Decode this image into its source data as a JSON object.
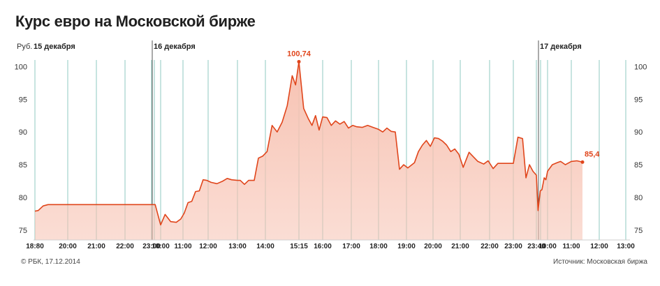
{
  "title": "Курс евро на Московской бирже",
  "credit": "© РБК, 17.12.2014",
  "source": "Источник: Московская биржа",
  "colors": {
    "line": "#e0451b",
    "fill": "#f7c2b2",
    "grid": "#8fc9c0",
    "axis": "#cfcfcf",
    "label": "#e0451b"
  },
  "chart_data": {
    "type": "area",
    "unit_label": "Руб.",
    "ylim": [
      73.5,
      101
    ],
    "y_ticks": [
      75,
      80,
      85,
      90,
      95,
      100
    ],
    "x_ticks": [
      "18:80",
      "20:00",
      "21:00",
      "22:00",
      "23:00",
      "10:00",
      "11:00",
      "12:00",
      "13:00",
      "14:00",
      "15:15",
      "16:00",
      "17:00",
      "18:00",
      "19:00",
      "20:00",
      "21:00",
      "22:00",
      "23:00",
      "23:40",
      "10:00",
      "11:00",
      "12:00",
      "13:00"
    ],
    "day_labels": [
      {
        "label": "15 декабря",
        "at_tick": 0
      },
      {
        "label": "16 декабря",
        "at_tick": 5
      },
      {
        "label": "17 декабря",
        "at_tick": 20
      }
    ],
    "annotations": [
      {
        "label": "100,74",
        "at_point": "peak"
      },
      {
        "label": "85,4",
        "at_point": "last"
      }
    ],
    "series": [
      {
        "values": [
          [
            0,
            77.9
          ],
          [
            0.1,
            78.0
          ],
          [
            0.25,
            78.7
          ],
          [
            0.4,
            78.9
          ],
          [
            1.0,
            78.9
          ],
          [
            2.0,
            78.9
          ],
          [
            3.0,
            78.9
          ],
          [
            4.0,
            78.9
          ],
          [
            4.4,
            78.9
          ],
          [
            5.0,
            75.8
          ],
          [
            5.2,
            77.4
          ],
          [
            5.45,
            76.3
          ],
          [
            5.7,
            76.2
          ],
          [
            5.9,
            76.7
          ],
          [
            6.05,
            77.6
          ],
          [
            6.2,
            79.2
          ],
          [
            6.35,
            79.4
          ],
          [
            6.5,
            80.9
          ],
          [
            6.65,
            81.0
          ],
          [
            6.8,
            82.7
          ],
          [
            6.95,
            82.6
          ],
          [
            7.1,
            82.3
          ],
          [
            7.3,
            82.1
          ],
          [
            7.5,
            82.5
          ],
          [
            7.65,
            82.9
          ],
          [
            7.8,
            82.7
          ],
          [
            8.0,
            82.6
          ],
          [
            8.1,
            82.6
          ],
          [
            8.25,
            82.0
          ],
          [
            8.4,
            82.6
          ],
          [
            8.6,
            82.6
          ],
          [
            8.75,
            86.0
          ],
          [
            8.9,
            86.3
          ],
          [
            9.05,
            87.0
          ],
          [
            9.2,
            91.0
          ],
          [
            9.35,
            90.0
          ],
          [
            9.5,
            91.5
          ],
          [
            9.65,
            94.0
          ],
          [
            9.8,
            98.6
          ],
          [
            9.9,
            97.2
          ],
          [
            10.0,
            100.74
          ],
          [
            10.2,
            93.6
          ],
          [
            10.4,
            92.0
          ],
          [
            10.55,
            91.0
          ],
          [
            10.7,
            92.5
          ],
          [
            10.85,
            90.3
          ],
          [
            11.0,
            92.3
          ],
          [
            11.15,
            92.2
          ],
          [
            11.3,
            91.0
          ],
          [
            11.45,
            91.7
          ],
          [
            11.6,
            91.2
          ],
          [
            11.75,
            91.6
          ],
          [
            11.9,
            90.6
          ],
          [
            12.05,
            91.0
          ],
          [
            12.2,
            90.8
          ],
          [
            12.4,
            90.7
          ],
          [
            12.6,
            91.0
          ],
          [
            12.8,
            90.7
          ],
          [
            13.0,
            90.4
          ],
          [
            13.15,
            90.0
          ],
          [
            13.3,
            90.6
          ],
          [
            13.45,
            90.1
          ],
          [
            13.6,
            90.0
          ],
          [
            13.75,
            84.3
          ],
          [
            13.9,
            85.0
          ],
          [
            14.05,
            84.5
          ],
          [
            14.3,
            85.3
          ],
          [
            14.45,
            87.0
          ],
          [
            14.6,
            88.0
          ],
          [
            14.75,
            88.7
          ],
          [
            14.9,
            87.8
          ],
          [
            15.05,
            89.1
          ],
          [
            15.2,
            89.0
          ],
          [
            15.35,
            88.6
          ],
          [
            15.5,
            88.0
          ],
          [
            15.65,
            87.0
          ],
          [
            15.8,
            87.4
          ],
          [
            15.95,
            86.6
          ],
          [
            16.1,
            84.6
          ],
          [
            16.3,
            86.9
          ],
          [
            16.45,
            86.2
          ],
          [
            16.6,
            85.5
          ],
          [
            16.8,
            85.1
          ],
          [
            16.95,
            85.6
          ],
          [
            17.15,
            84.4
          ],
          [
            17.35,
            85.2
          ],
          [
            17.55,
            85.2
          ],
          [
            17.75,
            85.2
          ],
          [
            18.0,
            85.2
          ],
          [
            18.2,
            89.2
          ],
          [
            18.4,
            89.0
          ],
          [
            18.55,
            83.0
          ],
          [
            18.7,
            85.0
          ],
          [
            18.85,
            84.0
          ],
          [
            19.0,
            83.4
          ],
          [
            19.15,
            78.0
          ],
          [
            19.35,
            81.0
          ],
          [
            19.5,
            81.2
          ],
          [
            19.7,
            83.0
          ],
          [
            19.85,
            82.7
          ],
          [
            20.0,
            84.0
          ],
          [
            20.2,
            85.0
          ],
          [
            20.4,
            85.3
          ],
          [
            20.55,
            85.5
          ],
          [
            20.75,
            85.0
          ],
          [
            21.0,
            85.5
          ],
          [
            21.2,
            85.6
          ],
          [
            21.4,
            85.4
          ]
        ]
      }
    ],
    "grid": true
  }
}
